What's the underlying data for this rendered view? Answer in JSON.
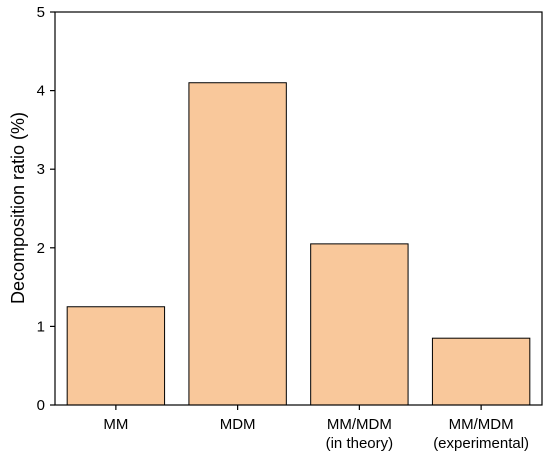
{
  "chart_data": {
    "type": "bar",
    "categories": [
      [
        "MM"
      ],
      [
        "MDM"
      ],
      [
        "MM/MDM",
        "(in theory)"
      ],
      [
        "MM/MDM",
        "(experimental)"
      ]
    ],
    "values": [
      1.25,
      4.1,
      2.05,
      0.85
    ],
    "ylabel": "Decomposition ratio (%)",
    "xlabel": "",
    "ylim": [
      0,
      5
    ],
    "yticks": [
      0,
      1,
      2,
      3,
      4,
      5
    ],
    "grid": false,
    "bar_color": "#f9c89b",
    "bar_edge_color": "#000000"
  }
}
